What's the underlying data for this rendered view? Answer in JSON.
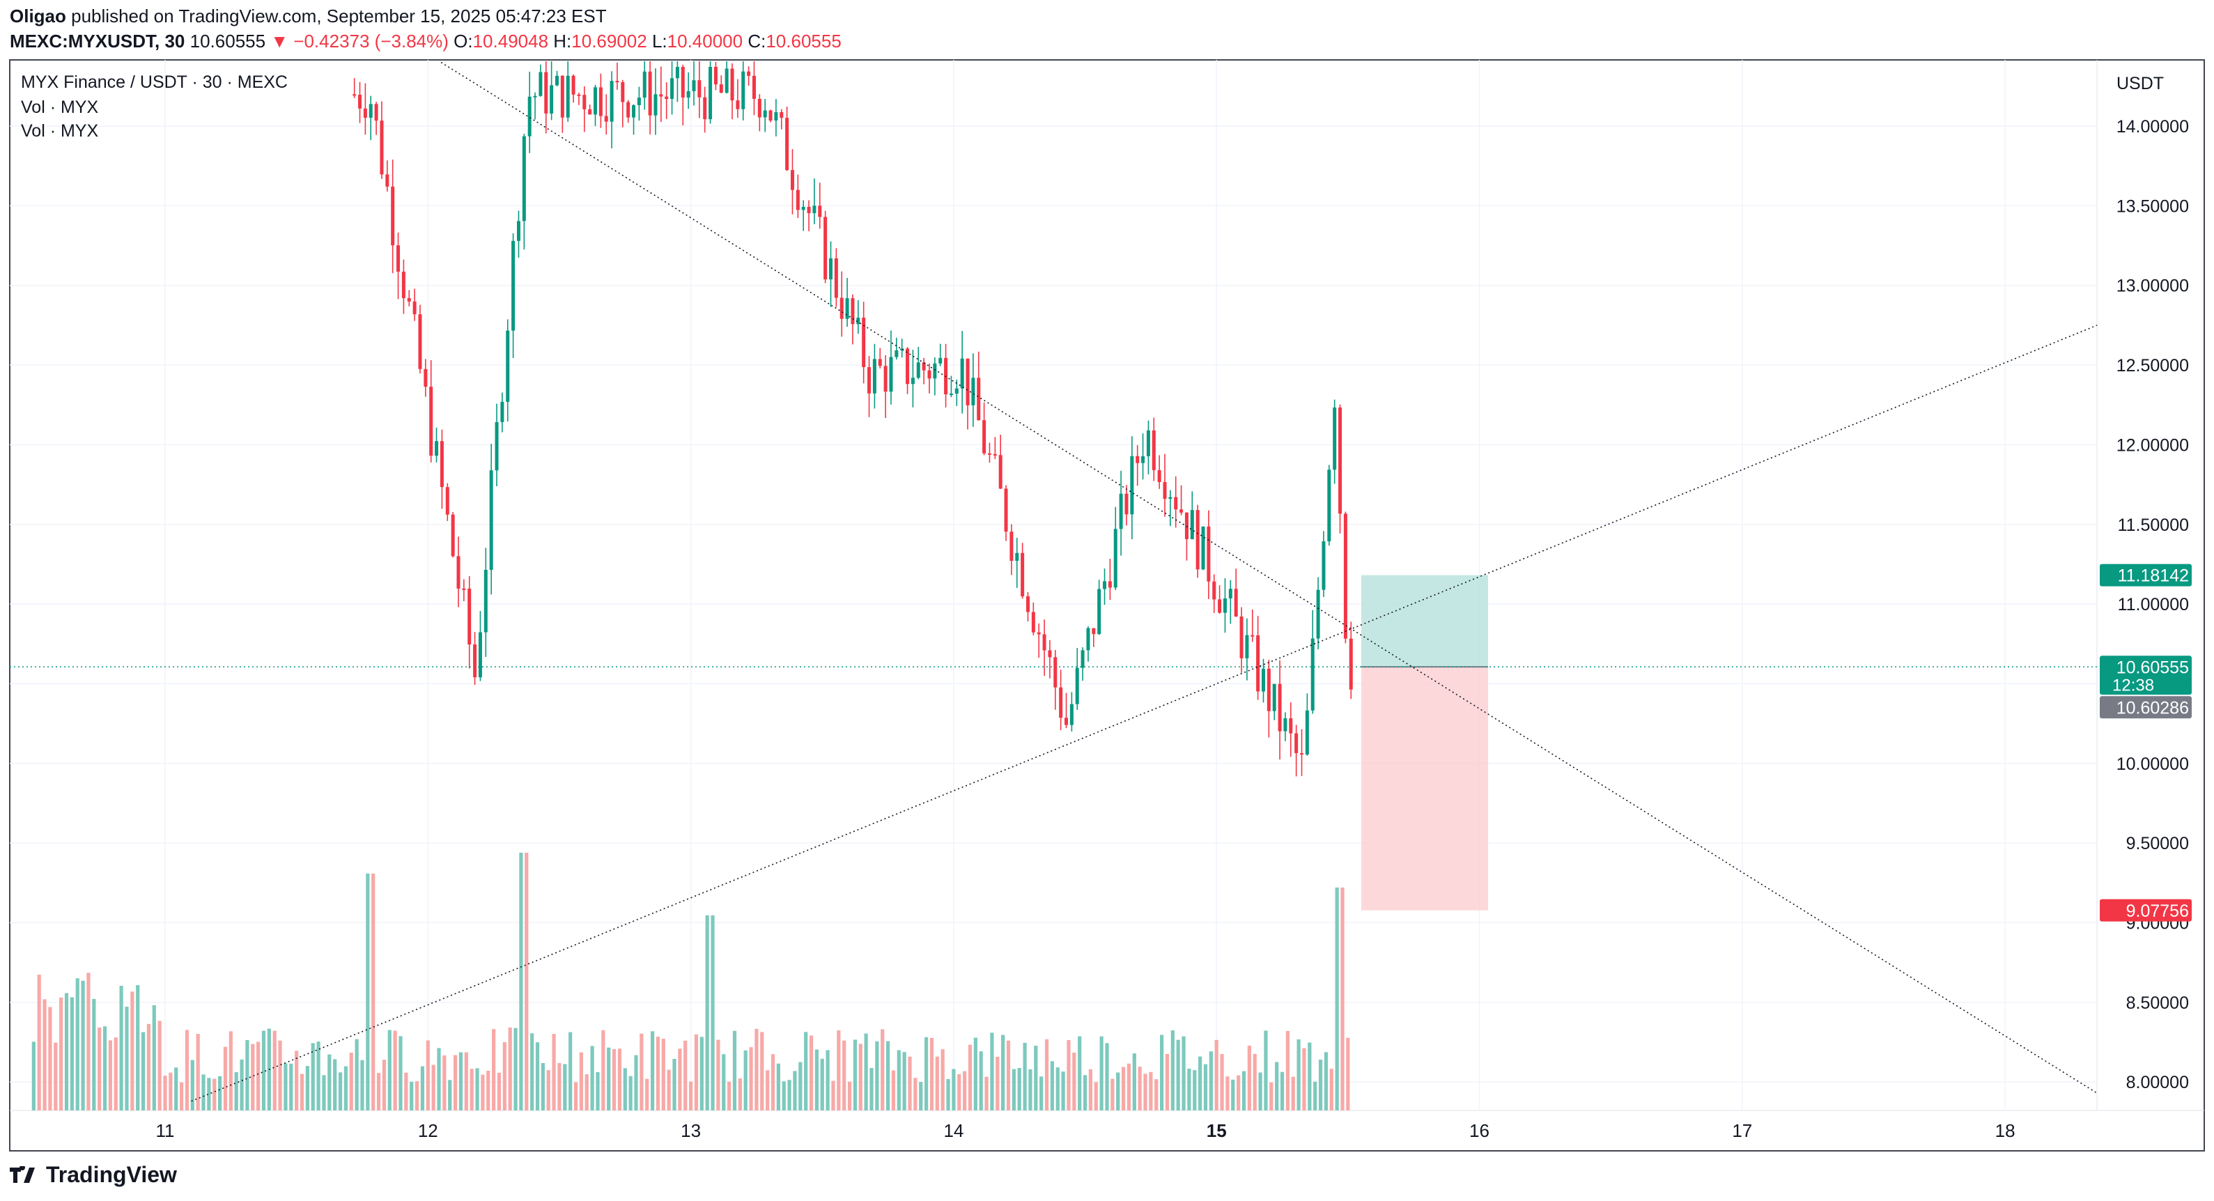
{
  "header": {
    "author": "Oligao",
    "published": "published on TradingView.com, September 15, 2025 05:47:23 EST",
    "symbol": "MEXC:MYXUSDT, 30",
    "last": "10.60555",
    "change_arrow": "▼",
    "change": "−0.42373 (−3.84%)",
    "o_label": "O:",
    "o": "10.49048",
    "h_label": "H:",
    "h": "10.69002",
    "l_label": "L:",
    "l": "10.40000",
    "c_label": "C:",
    "c": "10.60555"
  },
  "legend": {
    "title": "MYX Finance / USDT · 30 · MEXC",
    "vol1": "Vol · MYX",
    "vol2": "Vol · MYX"
  },
  "price_axis": {
    "currency": "USDT",
    "ticks": [
      "14.00000",
      "13.50000",
      "13.00000",
      "12.50000",
      "12.00000",
      "11.50000",
      "11.00000",
      "10.00000",
      "9.50000",
      "9.00000",
      "8.50000",
      "8.00000"
    ],
    "tick_values": [
      14.0,
      13.5,
      13.0,
      12.5,
      12.0,
      11.5,
      11.0,
      10.0,
      9.5,
      9.0,
      8.5,
      8.0
    ],
    "labels": [
      {
        "text": "11.18142",
        "value": 11.18142,
        "color": "#089981"
      },
      {
        "text": "10.60555",
        "value": 10.60555,
        "color": "#089981",
        "sub": "12:38"
      },
      {
        "text": "10.60286",
        "value": 10.60286,
        "color": "#787b86"
      },
      {
        "text": "9.07756",
        "value": 9.07756,
        "color": "#f23645"
      }
    ]
  },
  "time_axis": {
    "ticks": [
      "11",
      "12",
      "13",
      "14",
      "15",
      "16",
      "17",
      "18"
    ],
    "bold": "15"
  },
  "position": {
    "entry": 10.60555,
    "target": 11.18142,
    "stop": 9.07756,
    "profit_color": "#b2dfdb",
    "loss_color": "#fccbcd"
  },
  "colors": {
    "up": "#089981",
    "down": "#f23645",
    "vol_up": "#7dc9bd",
    "vol_down": "#f7a9a7"
  },
  "branding": {
    "logo_text": "TradingView"
  },
  "chart_data": {
    "type": "candlestick",
    "timeframe": "30",
    "ylim": [
      7.9,
      14.4
    ],
    "x_day_ticks": [
      "11",
      "12",
      "13",
      "14",
      "15",
      "16",
      "17",
      "18"
    ],
    "trendlines": [
      {
        "name": "",
        "from": {
          "day": 12.05,
          "price": 14.4
        },
        "to": {
          "day": 18.35,
          "price": 7.93
        }
      },
      {
        "name": "",
        "from": {
          "day": 11.1,
          "price": 7.88
        },
        "to": {
          "day": 18.35,
          "price": 12.75
        }
      }
    ],
    "key_prices": [
      {
        "day": 11.8,
        "price": 14.2
      },
      {
        "day": 12.2,
        "price": 10.55
      },
      {
        "day": 12.4,
        "price": 14.2
      },
      {
        "day": 13.3,
        "price": 14.2
      },
      {
        "day": 13.7,
        "price": 12.45
      },
      {
        "day": 14.05,
        "price": 12.5
      },
      {
        "day": 14.45,
        "price": 10.25
      },
      {
        "day": 14.75,
        "price": 12.1
      },
      {
        "day": 15.35,
        "price": 9.95
      },
      {
        "day": 15.47,
        "price": 12.35
      },
      {
        "day": 15.52,
        "price": 10.60555
      }
    ]
  }
}
